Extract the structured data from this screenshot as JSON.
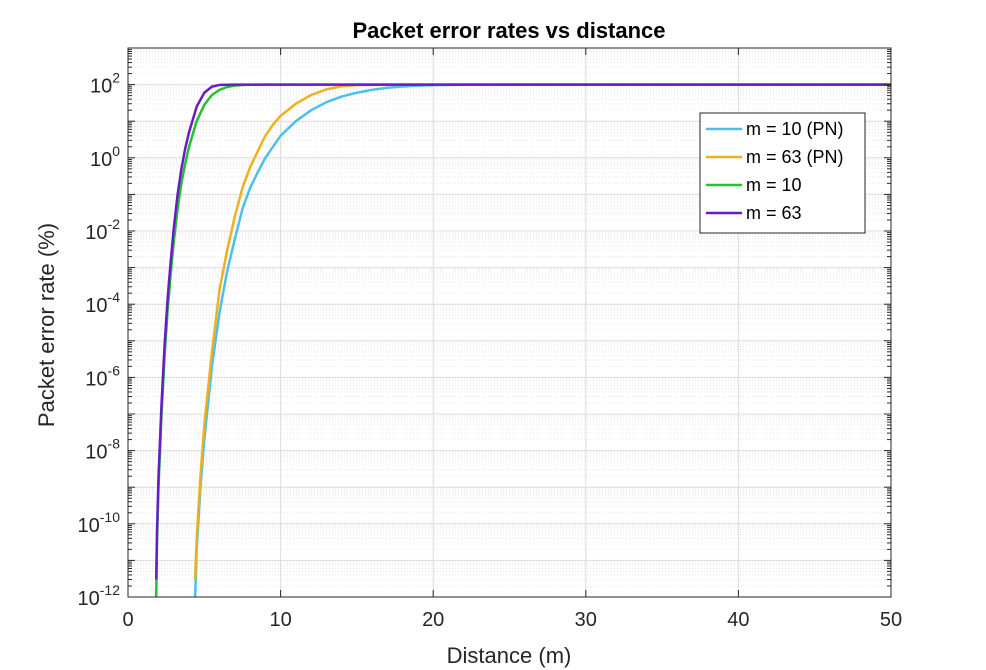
{
  "chart_data": {
    "type": "line",
    "title": "Packet error rates vs distance",
    "xlabel": "Distance (m)",
    "ylabel": "Packet error rate (%)",
    "xlim": [
      0,
      50
    ],
    "ylim": [
      1e-12,
      1000
    ],
    "yscale": "log",
    "grid": true,
    "minor_grid": true,
    "legend_position": "top-right",
    "x_ticks": [
      0,
      10,
      20,
      30,
      40,
      50
    ],
    "x_tick_labels": [
      "0",
      "10",
      "20",
      "30",
      "40",
      "50"
    ],
    "y_ticks": [
      1e-12,
      1e-10,
      1e-08,
      1e-06,
      0.0001,
      0.01,
      1,
      100
    ],
    "y_tick_labels": [
      {
        "base": "10",
        "exp": "-12"
      },
      {
        "base": "10",
        "exp": "-10"
      },
      {
        "base": "10",
        "exp": "-8"
      },
      {
        "base": "10",
        "exp": "-6"
      },
      {
        "base": "10",
        "exp": "-4"
      },
      {
        "base": "10",
        "exp": "-2"
      },
      {
        "base": "10",
        "exp": "0"
      },
      {
        "base": "10",
        "exp": "2"
      }
    ],
    "series": [
      {
        "name": "m = 10 (PN)",
        "color": "#4DBEEE",
        "x": [
          4.4,
          4.5,
          4.75,
          5,
          5.5,
          6,
          6.5,
          7,
          7.5,
          8,
          8.5,
          9,
          9.5,
          10,
          11,
          12,
          13,
          14,
          15,
          16,
          17,
          18,
          19,
          20,
          22,
          25,
          30,
          35,
          40,
          45,
          50
        ],
        "y": [
          1e-12,
          2e-11,
          1e-09,
          2e-08,
          2e-06,
          6e-05,
          0.0008,
          0.006,
          0.04,
          0.15,
          0.4,
          1,
          2,
          4,
          10,
          20,
          33,
          47,
          60,
          72,
          82,
          89,
          94,
          97,
          99.4,
          99.98,
          100,
          100,
          100,
          100,
          100
        ]
      },
      {
        "name": "m = 63 (PN)",
        "color": "#EDB120",
        "x": [
          4.4,
          4.5,
          4.75,
          5,
          5.5,
          6,
          6.5,
          7,
          7.5,
          8,
          8.5,
          9,
          9.5,
          10,
          11,
          12,
          13,
          14,
          15,
          16,
          18,
          20,
          25,
          30,
          40,
          50
        ],
        "y": [
          3e-12,
          4e-11,
          2e-09,
          5e-08,
          5e-06,
          0.00025,
          0.003,
          0.025,
          0.15,
          0.55,
          1.5,
          4,
          8,
          14,
          30,
          52,
          74,
          90,
          97,
          99.3,
          100,
          100,
          100,
          100,
          100,
          100
        ]
      },
      {
        "name": "m = 10",
        "color": "#22C22E",
        "x": [
          1.85,
          1.9,
          2,
          2.2,
          2.4,
          2.6,
          2.8,
          3,
          3.25,
          3.5,
          3.75,
          4,
          4.5,
          5,
          5.5,
          6,
          6.5,
          7,
          7.5,
          8,
          9,
          10,
          12,
          15,
          20,
          30,
          40,
          50
        ],
        "y": [
          1e-12,
          3e-11,
          1e-09,
          1e-07,
          4e-06,
          7e-05,
          0.0007,
          0.005,
          0.04,
          0.2,
          0.7,
          2,
          10,
          28,
          52,
          72,
          86,
          94,
          97.5,
          99,
          99.9,
          100,
          100,
          100,
          100,
          100,
          100,
          100
        ]
      },
      {
        "name": "m = 63",
        "color": "#6A1BC8",
        "x": [
          1.85,
          1.9,
          2,
          2.2,
          2.4,
          2.6,
          2.8,
          3,
          3.25,
          3.5,
          3.75,
          4,
          4.5,
          5,
          5.5,
          6,
          7,
          8,
          10,
          15,
          20,
          30,
          40,
          50
        ],
        "y": [
          3e-12,
          6e-11,
          2e-09,
          2e-07,
          8e-06,
          0.00015,
          0.0015,
          0.012,
          0.1,
          0.5,
          1.8,
          5,
          25,
          60,
          88,
          98,
          100,
          100,
          100,
          100,
          100,
          100,
          100,
          100
        ]
      }
    ]
  }
}
